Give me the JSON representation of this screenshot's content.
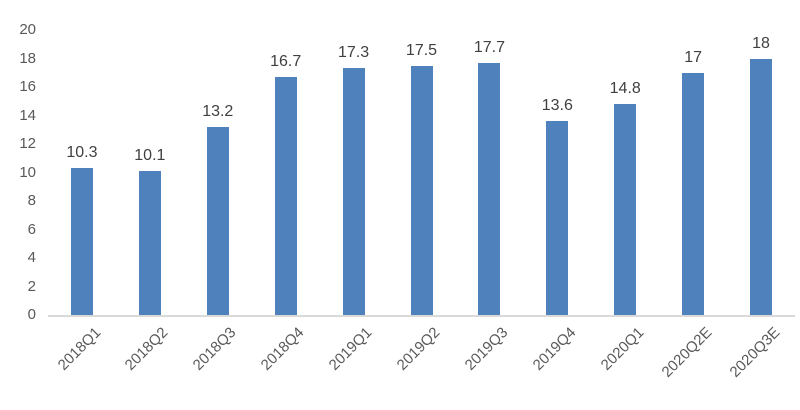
{
  "chart_data": {
    "type": "bar",
    "title": "",
    "xlabel": "",
    "ylabel": "",
    "categories": [
      "2018Q1",
      "2018Q2",
      "2018Q3",
      "2018Q4",
      "2019Q1",
      "2019Q2",
      "2019Q3",
      "2019Q4",
      "2020Q1",
      "2020Q2E",
      "2020Q3E"
    ],
    "values": [
      10.3,
      10.1,
      13.2,
      16.7,
      17.3,
      17.5,
      17.7,
      13.6,
      14.8,
      17,
      18
    ],
    "data_labels": [
      "10.3",
      "10.1",
      "13.2",
      "16.7",
      "17.3",
      "17.5",
      "17.7",
      "13.6",
      "14.8",
      "17",
      "18"
    ],
    "ylim": [
      0,
      20
    ],
    "y_ticks": [
      0,
      2,
      4,
      6,
      8,
      10,
      12,
      14,
      16,
      18,
      20
    ],
    "grid": false,
    "legend_position": "none",
    "colors": {
      "bar": "#4f81bd",
      "axis_labels": "#595959",
      "data_labels": "#404040",
      "baseline": "#d9d9d9"
    }
  }
}
